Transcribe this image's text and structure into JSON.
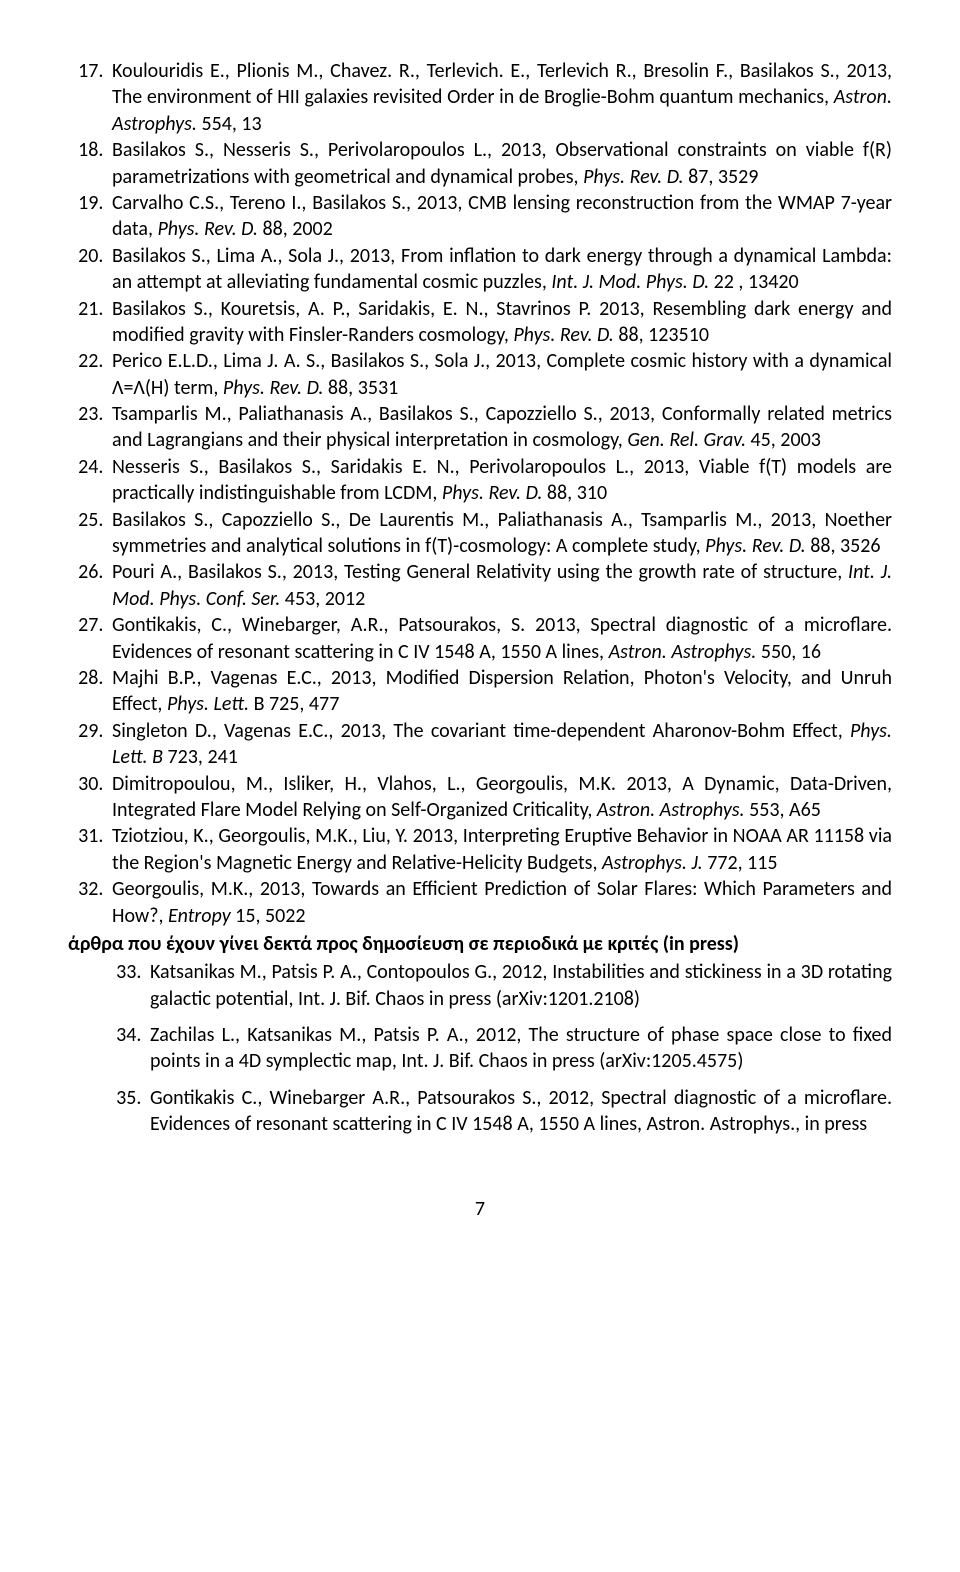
{
  "refs": [
    {
      "num": 17,
      "authors": "Koulouridis E., Plionis M., Chavez. R., Terlevich. E., Terlevich R., Bresolin F., Basilakos S., 2013, ",
      "title": "The environment of HII galaxies revisited Order in de Broglie-Bohm quantum mechanics, ",
      "journal": "Astron. Astrophys.",
      "loc": " 554, 13"
    },
    {
      "num": 18,
      "authors": "Basilakos S., Nesseris S., Perivolaropoulos L., 2013, ",
      "title": "Observational constraints on viable f(R) parametrizations with geometrical and dynamical probes, ",
      "journal": "Phys. Rev. D.",
      "loc": " 87, 3529"
    },
    {
      "num": 19,
      "authors": "Carvalho C.S., Tereno I., Basilakos S., 2013, ",
      "title": "CMB lensing reconstruction from the WMAP 7-year data, ",
      "journal": "Phys. Rev. D.",
      "loc": " 88, 2002"
    },
    {
      "num": 20,
      "authors": "Basilakos S., Lima A., Sola J., 2013, ",
      "title": "From inflation to dark energy through a dynamical Lambda: an attempt at alleviating fundamental cosmic puzzles, ",
      "journal": "Int. J. Mod. Phys. D. ",
      "loc": "22 , 13420"
    },
    {
      "num": 21,
      "authors": "Basilakos S., Kouretsis, A. P., Saridakis, E. N., Stavrinos P. 2013, ",
      "title": "Resembling dark energy and modified gravity with Finsler-Randers cosmology, ",
      "journal": "Phys. Rev. D.",
      "loc": " 88, 123510"
    },
    {
      "num": 22,
      "authors": "Perico E.L.D., Lima J. A. S., Basilakos S., Sola J., 2013, ",
      "title": "Complete cosmic history with a dynamical Λ=Λ(H) term, ",
      "journal": "Phys. Rev. D.",
      "loc": " 88, 3531"
    },
    {
      "num": 23,
      "authors": "Tsamparlis M., Paliathanasis A., Basilakos S., Capozziello S., 2013, ",
      "title": "Conformally related metrics and Lagrangians and their physical interpretation in cosmology, ",
      "journal": "Gen. Rel. Grav.",
      "loc": " 45, 2003"
    },
    {
      "num": 24,
      "authors": "Nesseris S., Basilakos S., Saridakis E. N., Perivolaropoulos L., 2013, ",
      "title": "Viable f(T) models are practically indistinguishable from LCDM, ",
      "journal": "Phys. Rev. D.",
      "loc": " 88, 310"
    },
    {
      "num": 25,
      "authors": "Basilakos S., Capozziello S., De Laurentis M., Paliathanasis A., Tsamparlis M., 2013, ",
      "title": "Noether symmetries and analytical solutions in f(T)-cosmology: A complete study, ",
      "journal": "Phys. Rev. D.",
      "loc": " 88, 3526"
    },
    {
      "num": 26,
      "authors": "Pouri A., Basilakos S., 2013, ",
      "title": "Testing General Relativity using the growth rate of structure, ",
      "journal": "Int. J. Mod. Phys. Conf. Ser.",
      "loc": " 453, 2012"
    },
    {
      "num": 27,
      "authors": "Gontikakis, C., Winebarger, A.R., Patsourakos, S. 2013, ",
      "title": "Spectral diagnostic of a microflare. Evidences of resonant scattering in C IV 1548 A, 1550 A lines, ",
      "journal": "Astron. Astrophys.",
      "loc": " 550, 16"
    },
    {
      "num": 28,
      "authors": "Majhi B.P., Vagenas E.C., 2013, ",
      "title": "Modified Dispersion Relation, Photon's Velocity, and Unruh Effect, ",
      "journal": "Phys. Lett.",
      "loc": " B 725, 477"
    },
    {
      "num": 29,
      "authors": "Singleton D., Vagenas E.C., 2013, ",
      "title": "The covariant time-dependent Aharonov-Bohm Effect, ",
      "journal": "Phys. Lett. B",
      "loc": " 723, 241"
    },
    {
      "num": 30,
      "authors": "Dimitropoulou, M., Isliker, H., Vlahos, L., Georgoulis, M.K. 2013, ",
      "title": "A Dynamic, Data-Driven, Integrated Flare Model Relying on Self-Organized Criticality, ",
      "journal": "Astron. Astrophys.",
      "loc": " 553, A65"
    },
    {
      "num": 31,
      "authors": "Tziotziou, K., Georgoulis, M.K., Liu, Y. 2013, ",
      "title": "Interpreting Eruptive Behavior in NOAA AR 11158 via the Region's Magnetic Energy and Relative-Helicity Budgets, ",
      "journal": "Astrophys. J.",
      "loc": " 772, 115"
    },
    {
      "num": 32,
      "authors": "Georgoulis, M.K., 2013, ",
      "title": "Towards an Efficient Prediction of Solar Flares: Which Parameters and How?, ",
      "journal": "Entropy",
      "loc": " 15, 5022"
    }
  ],
  "heading": "άρθρα που έχουν γίνει δεκτά προς δημοσίευση σε περιοδικά με κριτές (in press)",
  "inpress": [
    {
      "num": 33,
      "text": "Katsanikas M., Patsis P. A., Contopoulos G., 2012, Instabilities and stickiness in a 3D rotating galactic potential, Int. J. Bif. Chaos in press (arXiv:1201.2108)"
    },
    {
      "num": 34,
      "text": "Zachilas L., Katsanikas M., Patsis P. A., 2012, The structure of phase space close to fixed points in a 4D symplectic map, Int. J. Bif. Chaos in press (arXiv:1205.4575)"
    },
    {
      "num": 35,
      "text": "Gontikakis C., Winebarger A.R., Patsourakos S., 2012, Spectral diagnostic of a microflare. Evidences of resonant scattering in C IV 1548 A, 1550 A lines, Astron. Astrophys., in press"
    }
  ],
  "pageNumber": "7"
}
